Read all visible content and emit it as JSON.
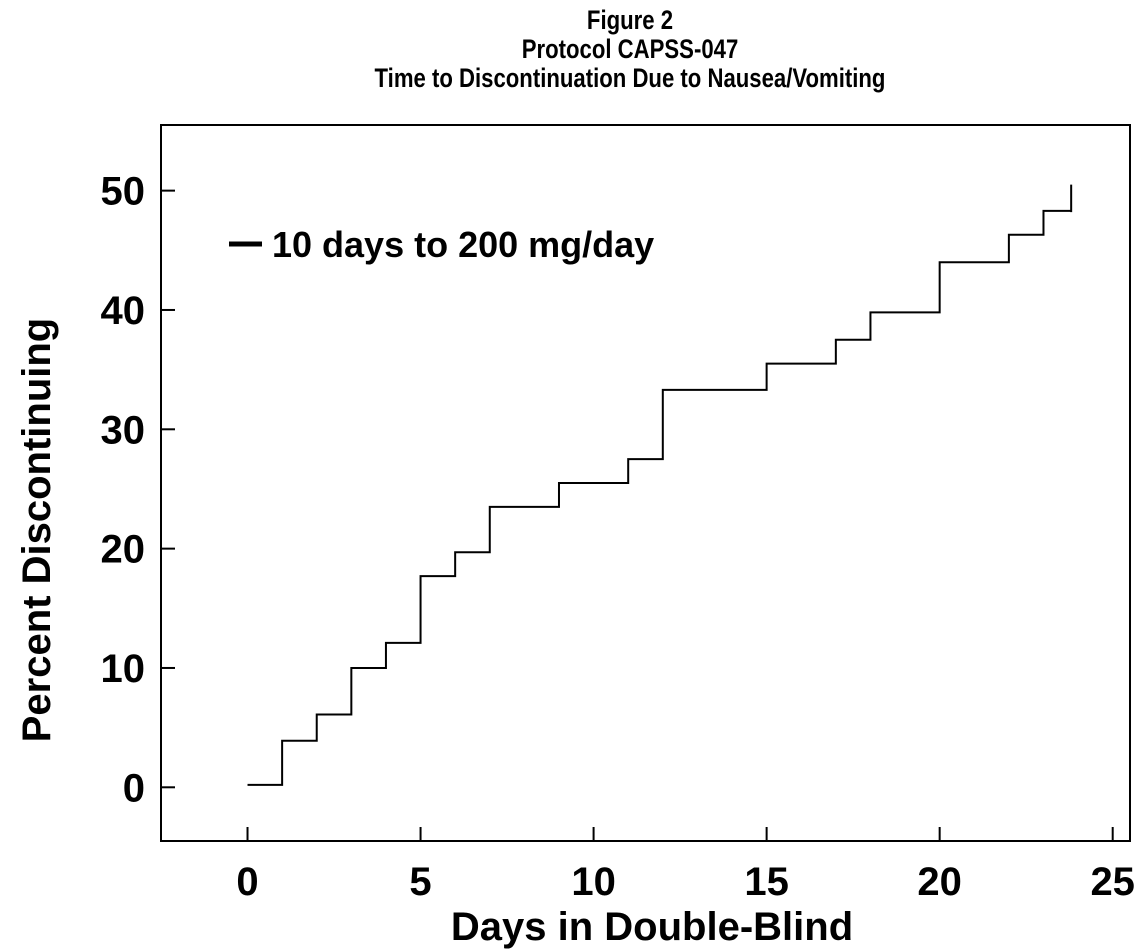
{
  "chart_data": {
    "type": "line",
    "step": true,
    "title": "Figure 2",
    "subtitle_lines": [
      "Protocol CAPSS-047",
      "Time to Discontinuation Due to Nausea/Vomiting"
    ],
    "xlabel": "Days in Double-Blind",
    "ylabel": "Percent Discontinuing",
    "xlim": [
      -2.5,
      25.5
    ],
    "ylim": [
      -4.5,
      55.5
    ],
    "xticks": [
      0,
      5,
      10,
      15,
      20,
      25
    ],
    "yticks": [
      0,
      10,
      20,
      30,
      40,
      50
    ],
    "grid": false,
    "legend_position": "top-left",
    "series": [
      {
        "name": "10 days to 200 mg/day",
        "x": [
          0,
          1,
          2,
          3,
          4,
          5,
          6,
          7,
          9,
          11,
          12,
          15,
          17,
          18,
          20,
          22,
          23,
          23.8
        ],
        "y": [
          0.2,
          3.9,
          6.1,
          10.0,
          12.1,
          17.7,
          19.7,
          23.5,
          25.5,
          27.5,
          33.3,
          35.5,
          37.5,
          39.8,
          44.0,
          46.3,
          48.3,
          50.5
        ]
      }
    ]
  }
}
